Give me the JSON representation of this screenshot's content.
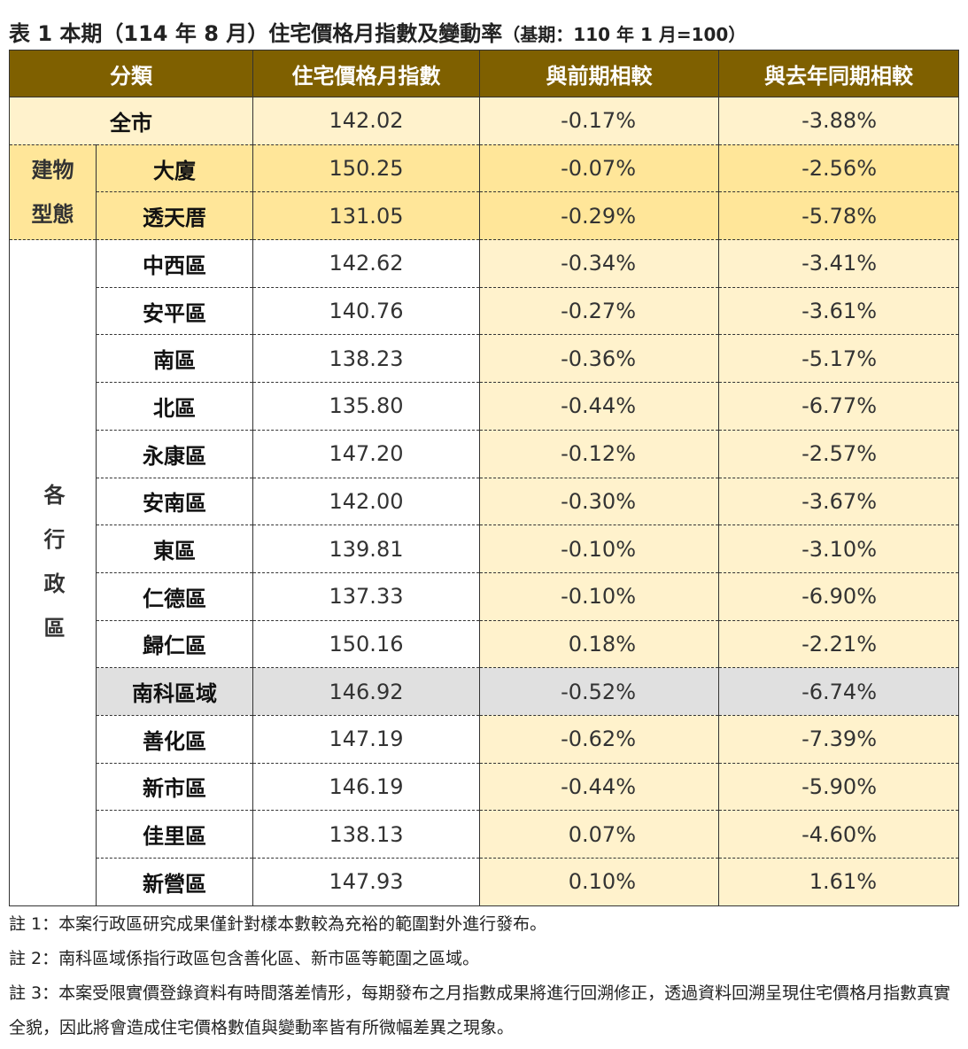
{
  "title": "表 1 本期（114 年 8 月）住宅價格月指數及變動率",
  "title_note": "（基期：110 年 1 月=100）",
  "table": {
    "header": [
      "分類",
      "住宅價格月指數",
      "與前期相較",
      "與去年同期相較"
    ],
    "city": {
      "label": "全市",
      "values": [
        "142.02",
        "-0.17%",
        "-3.88%"
      ]
    },
    "groups": [
      {
        "label": "建物型態",
        "rows": [
          {
            "label": "大廈",
            "values": [
              "150.25",
              "-0.07%",
              "-2.56%"
            ]
          },
          {
            "label": "透天厝",
            "values": [
              "131.05",
              "-0.29%",
              "-5.78%"
            ]
          }
        ]
      },
      {
        "label": "各行政區",
        "rows": [
          {
            "label": "中西區",
            "values": [
              "142.62",
              "-0.34%",
              "-3.41%"
            ]
          },
          {
            "label": "安平區",
            "values": [
              "140.76",
              "-0.27%",
              "-3.61%"
            ]
          },
          {
            "label": "南區",
            "values": [
              "138.23",
              "-0.36%",
              "-5.17%"
            ]
          },
          {
            "label": "北區",
            "values": [
              "135.80",
              "-0.44%",
              "-6.77%"
            ]
          },
          {
            "label": "永康區",
            "values": [
              "147.20",
              "-0.12%",
              "-2.57%"
            ]
          },
          {
            "label": "安南區",
            "values": [
              "142.00",
              "-0.30%",
              "-3.67%"
            ]
          },
          {
            "label": "東區",
            "values": [
              "139.81",
              "-0.10%",
              "-3.10%"
            ]
          },
          {
            "label": "仁德區",
            "values": [
              "137.33",
              "-0.10%",
              "-6.90%"
            ]
          },
          {
            "label": "歸仁區",
            "values": [
              "150.16",
              "0.18%",
              "-2.21%"
            ]
          },
          {
            "label": "南科區域",
            "values": [
              "146.92",
              "-0.52%",
              "-6.74%"
            ],
            "highlight": true
          },
          {
            "label": "善化區",
            "values": [
              "147.19",
              "-0.62%",
              "-7.39%"
            ]
          },
          {
            "label": "新市區",
            "values": [
              "146.19",
              "-0.44%",
              "-5.90%"
            ]
          },
          {
            "label": "佳里區",
            "values": [
              "138.13",
              "0.07%",
              "-4.60%"
            ]
          },
          {
            "label": "新營區",
            "values": [
              "147.93",
              "0.10%",
              "1.61%"
            ]
          }
        ]
      }
    ]
  },
  "notes": [
    "註 1：本案行政區研究成果僅針對樣本數較為充裕的範圍對外進行發布。",
    "註 2：南科區域係指行政區包含善化區、新市區等範圍之區域。",
    "註 3：本案受限實價登錄資料有時間落差情形，每期發布之月指數成果將進行回溯修正，透過資料回溯呈現住宅價格月指數真實全貌，因此將會造成住宅價格數值與變動率皆有所微幅差異之現象。"
  ]
}
